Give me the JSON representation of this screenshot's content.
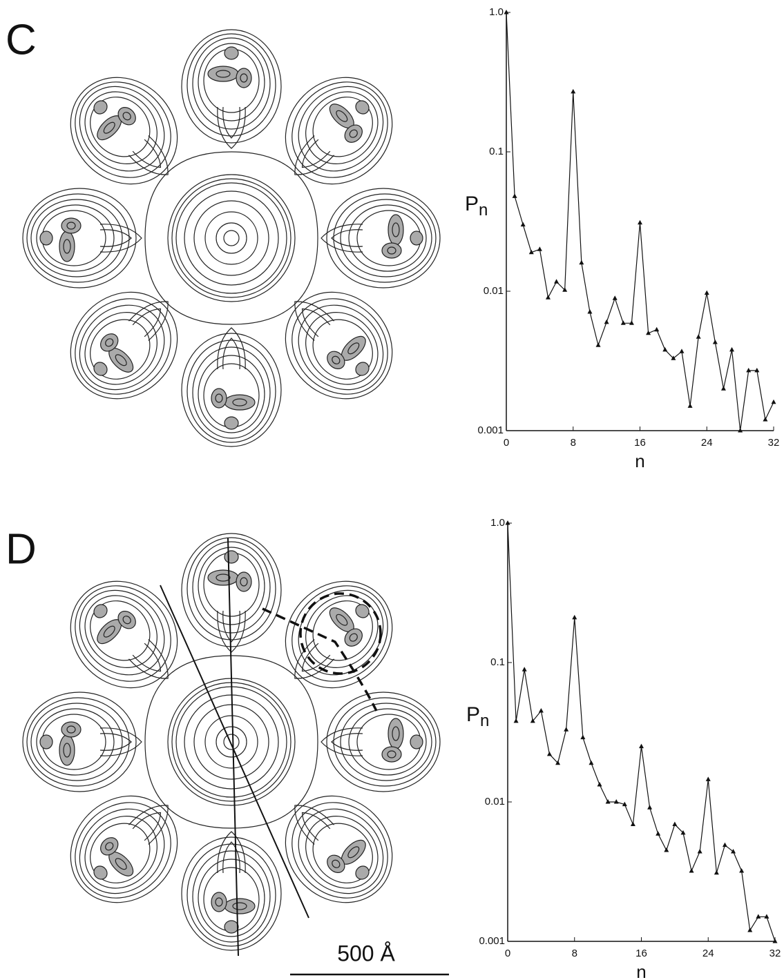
{
  "panels": [
    {
      "label": "C"
    },
    {
      "label": "D"
    }
  ],
  "scale_bar": "500 Å",
  "chart_data": [
    {
      "type": "line",
      "log_y": true,
      "color": "#111111",
      "xlabel": "n",
      "ylabel": {
        "base": "P",
        "sub": "n"
      },
      "x": [
        0,
        1,
        2,
        3,
        4,
        5,
        6,
        7,
        8,
        9,
        10,
        11,
        12,
        13,
        14,
        15,
        16,
        17,
        18,
        19,
        20,
        21,
        22,
        23,
        24,
        25,
        26,
        27,
        28,
        29,
        30,
        31,
        32
      ],
      "values": [
        1.0,
        0.048,
        0.03,
        0.019,
        0.02,
        0.009,
        0.0117,
        0.0102,
        0.27,
        0.016,
        0.0071,
        0.0041,
        0.006,
        0.0089,
        0.0059,
        0.0059,
        0.031,
        0.005,
        0.0053,
        0.0038,
        0.0033,
        0.0037,
        0.0015,
        0.0047,
        0.0097,
        0.0043,
        0.002,
        0.0038,
        0.001,
        0.0027,
        0.0027,
        0.0012,
        0.0016
      ],
      "xlim": [
        0,
        32
      ],
      "xticks": [
        0,
        8,
        16,
        24,
        32
      ],
      "ylim": [
        0.001,
        1
      ],
      "yticks": [
        0.001,
        0.01,
        0.1,
        {
          "value": 1,
          "label": "1.0"
        }
      ]
    },
    {
      "type": "line",
      "log_y": true,
      "color": "#111111",
      "xlabel": "n",
      "ylabel": {
        "base": "P",
        "sub": "n"
      },
      "x": [
        0,
        1,
        2,
        3,
        4,
        5,
        6,
        7,
        8,
        9,
        10,
        11,
        12,
        13,
        14,
        15,
        16,
        17,
        18,
        19,
        20,
        21,
        22,
        23,
        24,
        25,
        26,
        27,
        28,
        29,
        30,
        31,
        32
      ],
      "values": [
        1.0,
        0.038,
        0.089,
        0.038,
        0.045,
        0.022,
        0.019,
        0.033,
        0.21,
        0.029,
        0.019,
        0.0133,
        0.01,
        0.01,
        0.0096,
        0.0069,
        0.025,
        0.0091,
        0.0059,
        0.0045,
        0.0069,
        0.006,
        0.0032,
        0.0044,
        0.0145,
        0.0031,
        0.0049,
        0.0044,
        0.0032,
        0.0012,
        0.0015,
        0.0015,
        0.001
      ],
      "xlim": [
        0,
        32
      ],
      "xticks": [
        0,
        8,
        16,
        24,
        32
      ],
      "ylim": [
        0.001,
        1
      ],
      "yticks": [
        0.001,
        0.01,
        0.1,
        {
          "value": 1,
          "label": "1.0"
        }
      ]
    }
  ]
}
